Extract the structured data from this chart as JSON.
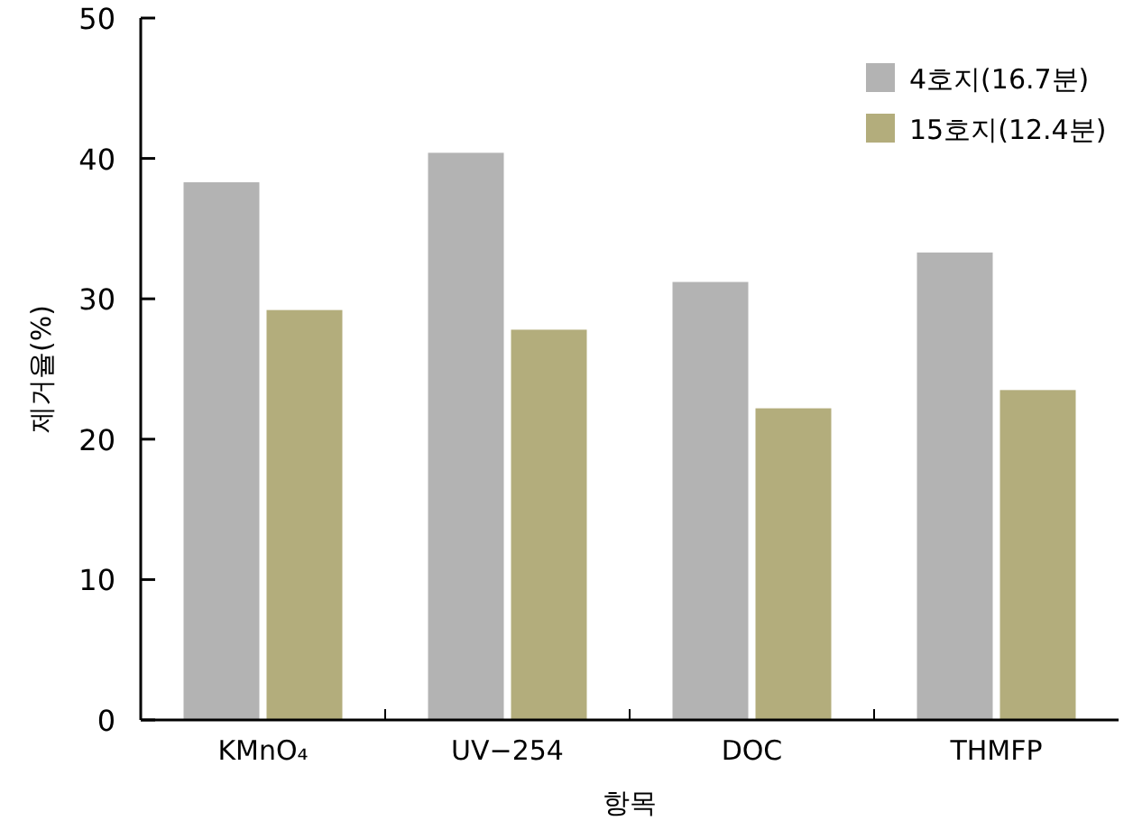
{
  "chart_data": {
    "type": "bar",
    "xlabel": "항목",
    "ylabel": "제거율(%)",
    "categories": [
      "KMnO₄",
      "UV−254",
      "DOC",
      "THMFP"
    ],
    "series": [
      {
        "name": "4호지(16.7분)",
        "color": "#b3b3b3",
        "values": [
          38.3,
          40.4,
          31.2,
          33.3
        ]
      },
      {
        "name": "15호지(12.4분)",
        "color": "#b3ad7c",
        "values": [
          29.2,
          27.8,
          22.2,
          23.5
        ]
      }
    ],
    "ylim": [
      0,
      50
    ],
    "yticks": [
      0,
      10,
      20,
      30,
      40,
      50
    ],
    "legend": "top right"
  }
}
